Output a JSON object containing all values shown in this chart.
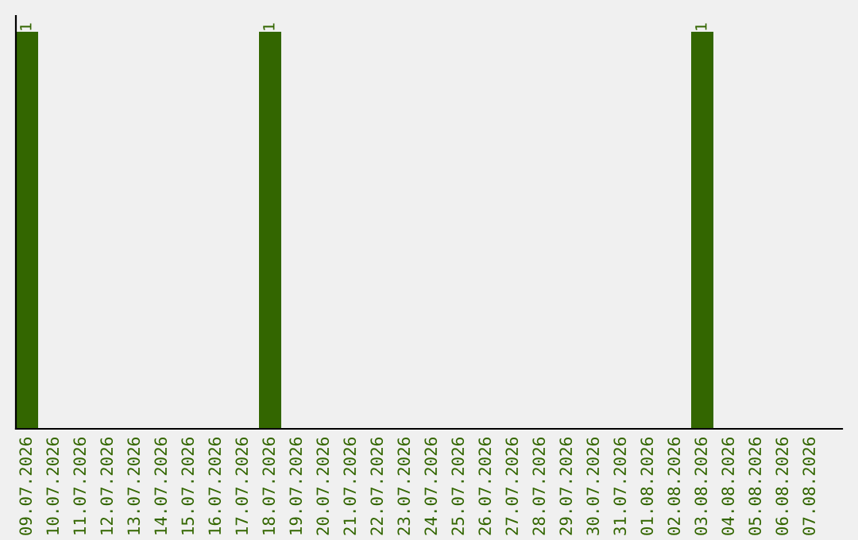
{
  "chart_data": {
    "type": "bar",
    "categories": [
      "09.07.2026",
      "10.07.2026",
      "11.07.2026",
      "12.07.2026",
      "13.07.2026",
      "14.07.2026",
      "15.07.2026",
      "16.07.2026",
      "17.07.2026",
      "18.07.2026",
      "19.07.2026",
      "20.07.2026",
      "21.07.2026",
      "22.07.2026",
      "23.07.2026",
      "24.07.2026",
      "25.07.2026",
      "26.07.2026",
      "27.07.2026",
      "28.07.2026",
      "29.07.2026",
      "30.07.2026",
      "31.07.2026",
      "01.08.2026",
      "02.08.2026",
      "03.08.2026",
      "04.08.2026",
      "05.08.2026",
      "06.08.2026",
      "07.08.2026"
    ],
    "values": [
      1,
      0,
      0,
      0,
      0,
      0,
      0,
      0,
      0,
      1,
      0,
      0,
      0,
      0,
      0,
      0,
      0,
      0,
      0,
      0,
      0,
      0,
      0,
      0,
      0,
      1,
      0,
      0,
      0,
      0
    ],
    "value_labels": [
      "1",
      null,
      null,
      null,
      null,
      null,
      null,
      null,
      null,
      "1",
      null,
      null,
      null,
      null,
      null,
      null,
      null,
      null,
      null,
      null,
      null,
      null,
      null,
      null,
      null,
      "1",
      null,
      null,
      null,
      null
    ],
    "color": "#336600",
    "tick_labels": "x",
    "grid": false
  }
}
